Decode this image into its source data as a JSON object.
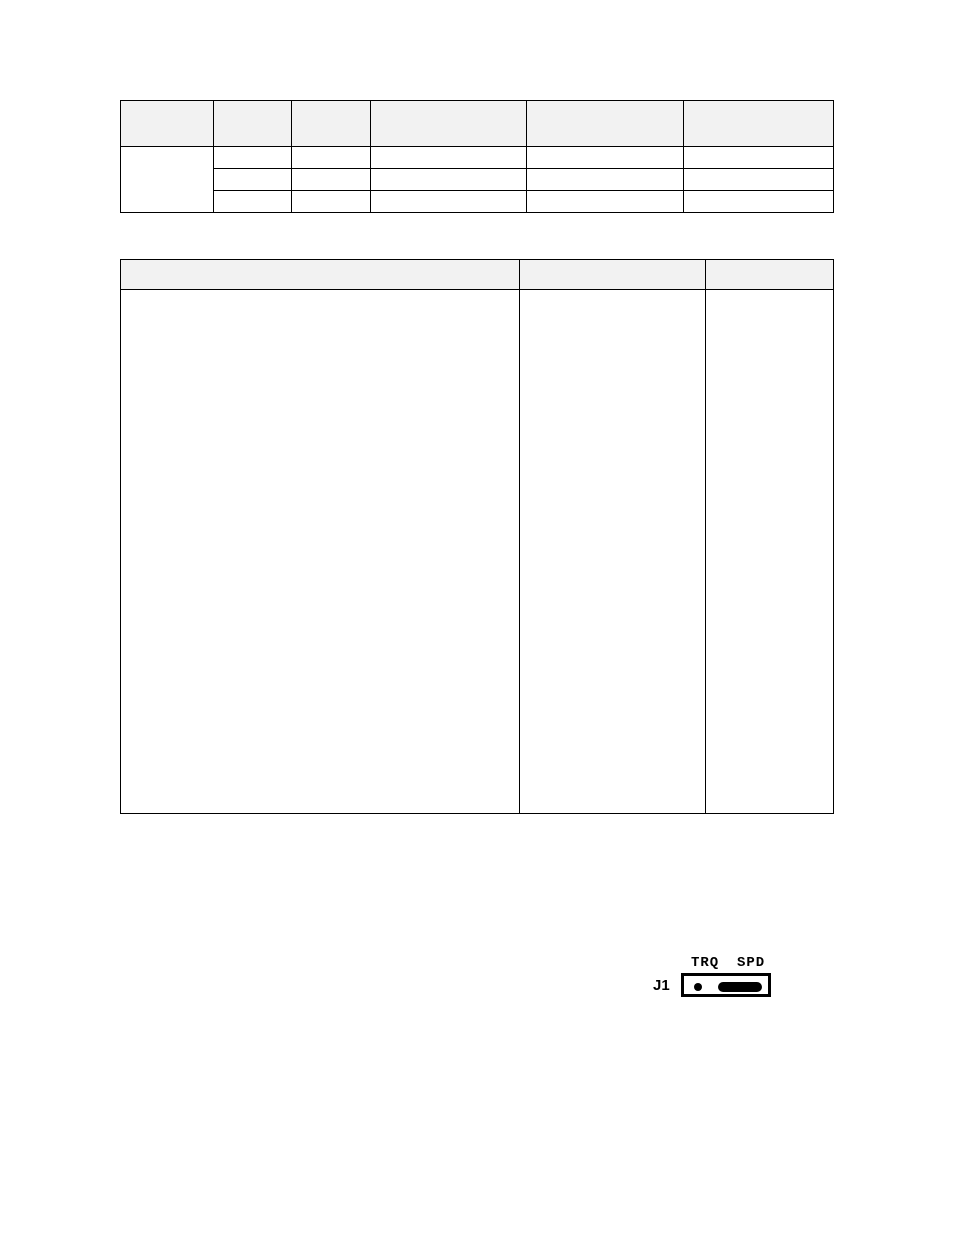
{
  "table1": {
    "headers": [
      "",
      "",
      "",
      "",
      "",
      ""
    ],
    "group_label": "",
    "rows": [
      [
        "",
        "",
        "",
        "",
        ""
      ],
      [
        "",
        "",
        "",
        "",
        ""
      ],
      [
        "",
        "",
        "",
        "",
        ""
      ]
    ]
  },
  "table2": {
    "headers": [
      "",
      "",
      ""
    ],
    "body": [
      "",
      "",
      ""
    ]
  },
  "jumper": {
    "label_left": "TRQ",
    "label_right": "SPD",
    "designator": "J1"
  },
  "colors": {
    "page_bg": "#ffffff",
    "header_bg": "#f2f2f2",
    "border": "#000000",
    "text": "#000000"
  }
}
